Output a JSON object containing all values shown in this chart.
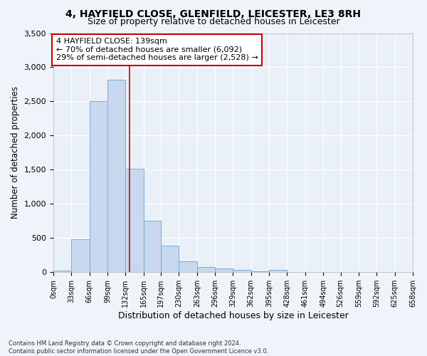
{
  "title": "4, HAYFIELD CLOSE, GLENFIELD, LEICESTER, LE3 8RH",
  "subtitle": "Size of property relative to detached houses in Leicester",
  "xlabel": "Distribution of detached houses by size in Leicester",
  "ylabel": "Number of detached properties",
  "footer_line1": "Contains HM Land Registry data © Crown copyright and database right 2024.",
  "footer_line2": "Contains public sector information licensed under the Open Government Licence v3.0.",
  "annotation_line1": "4 HAYFIELD CLOSE: 139sqm",
  "annotation_line2": "← 70% of detached houses are smaller (6,092)",
  "annotation_line3": "29% of semi-detached houses are larger (2,528) →",
  "bar_edges": [
    0,
    33,
    66,
    99,
    132,
    165,
    197,
    230,
    263,
    296,
    329,
    362,
    395,
    428,
    461,
    494,
    526,
    559,
    592,
    625,
    658
  ],
  "bar_heights": [
    20,
    480,
    2500,
    2820,
    1510,
    750,
    390,
    155,
    75,
    55,
    40,
    10,
    40,
    5,
    5,
    0,
    0,
    0,
    0,
    0
  ],
  "bar_color": "#c8d8ee",
  "bar_edgecolor": "#7aaed4",
  "vline_color": "#cc0000",
  "vline_x": 139,
  "annotation_box_edgecolor": "#cc0000",
  "annotation_box_facecolor": "#ffffff",
  "ylim": [
    0,
    3500
  ],
  "yticks": [
    0,
    500,
    1000,
    1500,
    2000,
    2500,
    3000,
    3500
  ],
  "background_color": "#f0f4fa",
  "axes_background": "#eaf0f8",
  "tick_labels": [
    "0sqm",
    "33sqm",
    "66sqm",
    "99sqm",
    "132sqm",
    "165sqm",
    "197sqm",
    "230sqm",
    "263sqm",
    "296sqm",
    "329sqm",
    "362sqm",
    "395sqm",
    "428sqm",
    "461sqm",
    "494sqm",
    "526sqm",
    "559sqm",
    "592sqm",
    "625sqm",
    "658sqm"
  ],
  "title_fontsize": 10,
  "subtitle_fontsize": 9,
  "xlabel_fontsize": 9,
  "ylabel_fontsize": 8.5,
  "annotation_fontsize": 8,
  "tick_fontsize": 7,
  "ytick_fontsize": 8
}
